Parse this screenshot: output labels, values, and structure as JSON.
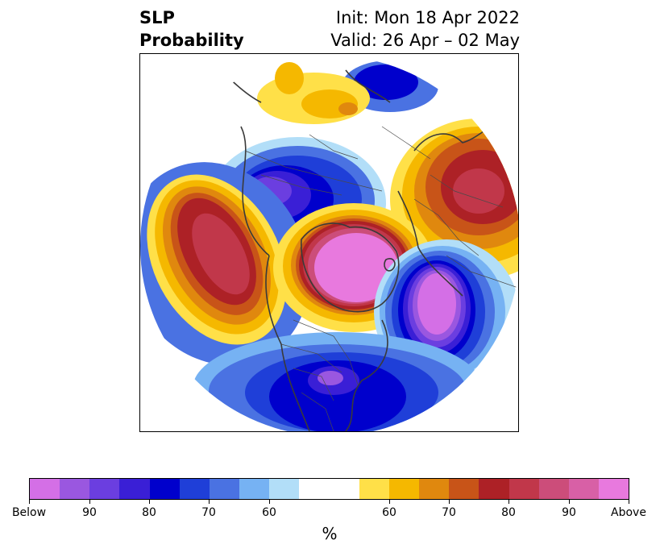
{
  "header": {
    "variable": "SLP",
    "product": "Probability",
    "init": "Init: Mon 18 Apr 2022",
    "valid": "Valid: 26 Apr – 02 May"
  },
  "map": {
    "projection": "north-polar-stereographic",
    "features": [
      {
        "name": "north-pacific-above-anomaly",
        "category": "above",
        "peak_percent": 80
      },
      {
        "name": "arctic-above-anomaly",
        "category": "above",
        "peak_percent": 90
      },
      {
        "name": "eurasia-above-anomaly",
        "category": "above",
        "peak_percent": 80
      },
      {
        "name": "north-atlantic-below-anomaly",
        "category": "below",
        "peak_percent": 90
      },
      {
        "name": "siberia-below-anomaly",
        "category": "below",
        "peak_percent": 90
      },
      {
        "name": "eastern-us-below-anomaly",
        "category": "below",
        "peak_percent": 90
      }
    ]
  },
  "colorbar": {
    "unit": "%",
    "colors": [
      "#d46fe6",
      "#9a57e0",
      "#6b3ee0",
      "#3a1fd6",
      "#0000cc",
      "#1f3fd8",
      "#4a72e2",
      "#76b2f3",
      "#b2def8",
      "#ffffff",
      "#ffffff",
      "#ffe048",
      "#f5b800",
      "#e0880e",
      "#c85418",
      "#ad2126",
      "#c1374a",
      "#cc4d7a",
      "#d860a6",
      "#e879de"
    ],
    "tick_labels": [
      "Below",
      "90",
      "80",
      "70",
      "60",
      "60",
      "70",
      "80",
      "90",
      "Above"
    ]
  }
}
